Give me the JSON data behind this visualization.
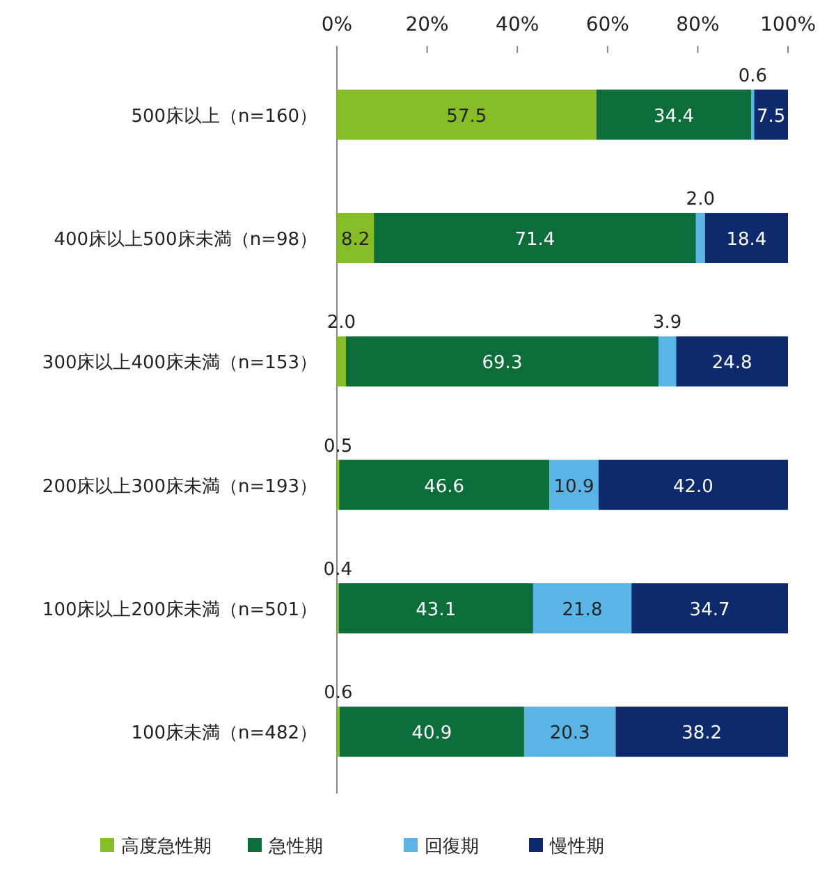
{
  "chart_data": {
    "type": "bar",
    "orientation": "horizontal",
    "stacked": true,
    "legend": "bottom",
    "grid": false,
    "categories": [
      "500床以上（n=160）",
      "400床以上500床未満（n=98）",
      "300床以上400床未満（n=153）",
      "200床以上300床未満（n=193）",
      "100床以上200床未満（n=501）",
      "100床未満（n=482）"
    ],
    "xlim": [
      0,
      100
    ],
    "xticks": [
      {
        "value": 0,
        "label": "0%"
      },
      {
        "value": 20,
        "label": "20%"
      },
      {
        "value": 40,
        "label": "40%"
      },
      {
        "value": 60,
        "label": "60%"
      },
      {
        "value": 80,
        "label": "80%"
      },
      {
        "value": 100,
        "label": "100%"
      }
    ],
    "series": [
      {
        "name": "高度急性期",
        "color": "#86bc25",
        "values": [
          57.5,
          8.2,
          2.0,
          0.5,
          0.4,
          0.6
        ],
        "value_labels": [
          "57.5",
          "8.2",
          "2.0",
          "0.5",
          "0.4",
          "0.6"
        ]
      },
      {
        "name": "急性期",
        "color": "#0b6e3a",
        "values": [
          34.4,
          71.4,
          69.3,
          46.6,
          43.1,
          40.9
        ],
        "value_labels": [
          "34.4",
          "71.4",
          "69.3",
          "46.6",
          "43.1",
          "40.9"
        ]
      },
      {
        "name": "回復期",
        "color": "#5ab4e6",
        "values": [
          0.6,
          2.0,
          3.9,
          10.9,
          21.8,
          20.3
        ],
        "value_labels": [
          "0.6",
          "2.0",
          "3.9",
          "10.9",
          "21.8",
          "20.3"
        ]
      },
      {
        "name": "慢性期",
        "color": "#0d2a6e",
        "values": [
          7.5,
          18.4,
          24.8,
          42.0,
          34.7,
          38.2
        ],
        "value_labels": [
          "7.5",
          "18.4",
          "24.8",
          "42.0",
          "34.7",
          "38.2"
        ]
      }
    ]
  }
}
